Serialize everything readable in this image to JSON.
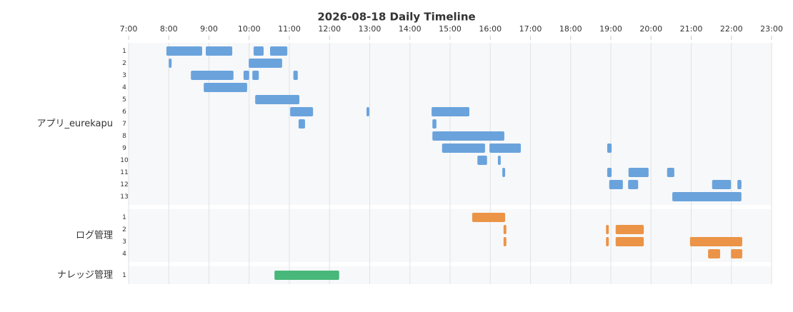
{
  "chart_data": {
    "type": "timeline",
    "title": "2026-08-18 Daily Timeline",
    "xlim": [
      7,
      23
    ],
    "xticks": [
      {
        "value": 7,
        "label": "7:00"
      },
      {
        "value": 8,
        "label": "8:00"
      },
      {
        "value": 9,
        "label": "9:00"
      },
      {
        "value": 10,
        "label": "10:00"
      },
      {
        "value": 11,
        "label": "11:00"
      },
      {
        "value": 12,
        "label": "12:00"
      },
      {
        "value": 13,
        "label": "13:00"
      },
      {
        "value": 14,
        "label": "14:00"
      },
      {
        "value": 15,
        "label": "15:00"
      },
      {
        "value": 16,
        "label": "16:00"
      },
      {
        "value": 17,
        "label": "17:00"
      },
      {
        "value": 18,
        "label": "18:00"
      },
      {
        "value": 19,
        "label": "19:00"
      },
      {
        "value": 20,
        "label": "20:00"
      },
      {
        "value": 21,
        "label": "21:00"
      },
      {
        "value": 22,
        "label": "22:00"
      },
      {
        "value": 23,
        "label": "23:00"
      }
    ],
    "grid": true,
    "groups": [
      {
        "name": "アプリ_eurekapu",
        "color": "#6aa3dc",
        "lanes": [
          {
            "label": "1",
            "bars": [
              [
                7.94,
                8.83
              ],
              [
                8.92,
                9.58
              ],
              [
                10.11,
                10.36
              ],
              [
                10.52,
                10.95
              ]
            ]
          },
          {
            "label": "2",
            "bars": [
              [
                8.0,
                8.07
              ],
              [
                9.99,
                10.82
              ]
            ]
          },
          {
            "label": "3",
            "bars": [
              [
                8.55,
                9.61
              ],
              [
                9.86,
                10.0
              ],
              [
                10.08,
                10.24
              ],
              [
                11.1,
                11.21
              ]
            ]
          },
          {
            "label": "4",
            "bars": [
              [
                8.87,
                9.95
              ]
            ]
          },
          {
            "label": "5",
            "bars": [
              [
                10.15,
                11.25
              ]
            ]
          },
          {
            "label": "6",
            "bars": [
              [
                11.02,
                11.59
              ],
              [
                12.92,
                12.99
              ],
              [
                14.54,
                15.48
              ]
            ]
          },
          {
            "label": "7",
            "bars": [
              [
                11.23,
                11.39
              ],
              [
                14.56,
                14.66
              ]
            ]
          },
          {
            "label": "8",
            "bars": [
              [
                14.56,
                16.35
              ]
            ]
          },
          {
            "label": "9",
            "bars": [
              [
                14.8,
                15.87
              ],
              [
                15.98,
                16.76
              ],
              [
                18.91,
                19.02
              ]
            ]
          },
          {
            "label": "10",
            "bars": [
              [
                15.68,
                15.92
              ],
              [
                16.19,
                16.26
              ]
            ]
          },
          {
            "label": "11",
            "bars": [
              [
                16.3,
                16.37
              ],
              [
                18.91,
                19.02
              ],
              [
                19.44,
                19.94
              ],
              [
                20.4,
                20.58
              ]
            ]
          },
          {
            "label": "12",
            "bars": [
              [
                18.96,
                19.3
              ],
              [
                19.43,
                19.68
              ],
              [
                21.52,
                21.99
              ],
              [
                22.15,
                22.25
              ]
            ]
          },
          {
            "label": "13",
            "bars": [
              [
                20.53,
                22.25
              ]
            ]
          }
        ]
      },
      {
        "name": "ログ管理",
        "color": "#eb9447",
        "lanes": [
          {
            "label": "1",
            "bars": [
              [
                15.55,
                16.37
              ]
            ]
          },
          {
            "label": "2",
            "bars": [
              [
                16.33,
                16.4
              ],
              [
                18.88,
                18.95
              ],
              [
                19.12,
                19.82
              ]
            ]
          },
          {
            "label": "3",
            "bars": [
              [
                16.33,
                16.4
              ],
              [
                18.88,
                18.95
              ],
              [
                19.12,
                19.82
              ],
              [
                20.97,
                22.27
              ]
            ]
          },
          {
            "label": "4",
            "bars": [
              [
                21.42,
                21.72
              ],
              [
                21.99,
                22.27
              ]
            ]
          }
        ]
      },
      {
        "name": "ナレッジ管理",
        "color": "#48b87a",
        "lanes": [
          {
            "label": "1",
            "bars": [
              [
                10.63,
                12.24
              ]
            ]
          }
        ]
      }
    ]
  }
}
